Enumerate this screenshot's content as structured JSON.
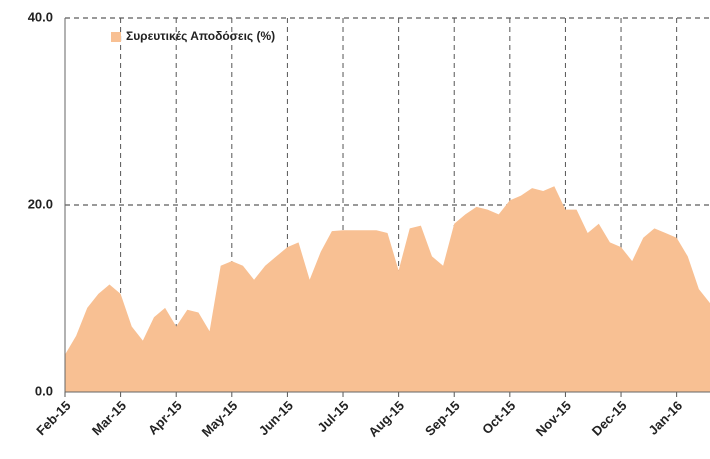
{
  "chart_data": {
    "type": "area",
    "series": [
      {
        "name": "Συρευτικές Αποδόσεις (%)",
        "color": "#f8c093",
        "values": [
          4,
          6,
          9,
          10.5,
          11.5,
          10.5,
          7,
          5.5,
          8,
          9,
          7,
          8.8,
          8.5,
          6.5,
          13.5,
          14,
          13.5,
          12,
          13.5,
          14.5,
          15.5,
          16,
          12,
          15,
          17.2,
          17.3,
          17.3,
          17.3,
          17.3,
          17,
          13,
          17.5,
          17.8,
          14.5,
          13.5,
          18,
          19,
          19.8,
          19.5,
          19,
          20.5,
          21,
          21.8,
          21.5,
          22,
          19.5,
          19.5,
          17,
          18,
          16,
          15.5,
          14,
          16.5,
          17.5,
          17,
          16.5,
          14.5,
          11,
          9.5
        ]
      }
    ],
    "categories": [
      "Feb-15",
      null,
      null,
      null,
      null,
      "Mar-15",
      null,
      null,
      null,
      null,
      "Apr-15",
      null,
      null,
      null,
      null,
      "May-15",
      null,
      null,
      null,
      null,
      "Jun-15",
      null,
      null,
      null,
      null,
      "Jul-15",
      null,
      null,
      null,
      null,
      "Aug-15",
      null,
      null,
      null,
      null,
      "Sep-15",
      null,
      null,
      null,
      null,
      "Oct-15",
      null,
      null,
      null,
      null,
      "Nov-15",
      null,
      null,
      null,
      null,
      "Dec-15",
      null,
      null,
      null,
      null,
      "Jan-16",
      null,
      null,
      null
    ],
    "ylim": [
      0,
      40
    ],
    "yticks": [
      {
        "value": 0,
        "label": "0.0"
      },
      {
        "value": 20,
        "label": "20.0"
      },
      {
        "value": 40,
        "label": "40.0"
      }
    ],
    "grid": true,
    "legend": "upper left"
  }
}
